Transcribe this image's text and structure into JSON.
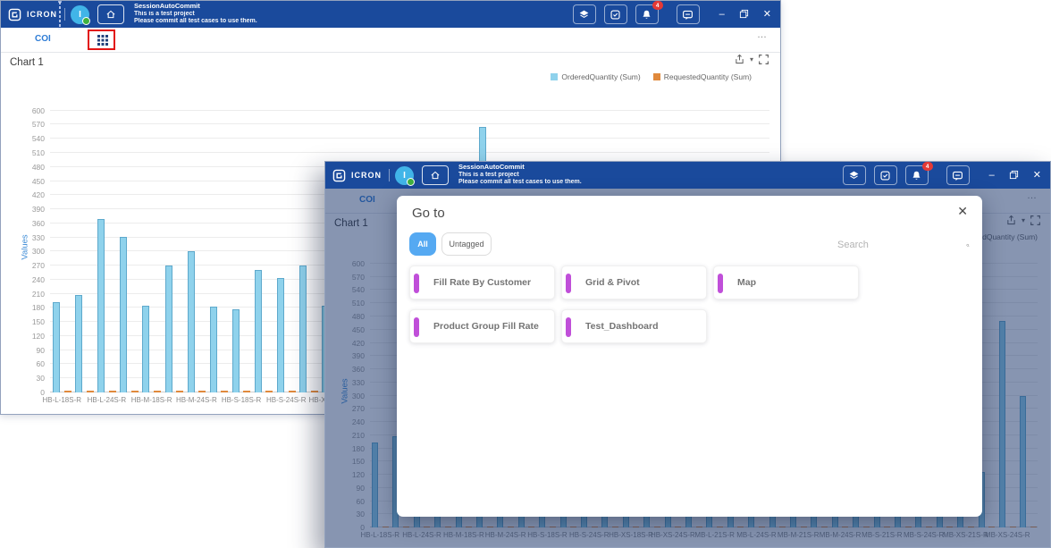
{
  "titlebar": {
    "app_name": "ICRON",
    "avatar_letter": "I",
    "project_name": "SessionAutoCommit",
    "project_line2": "This is a test project",
    "project_line3": "Please commit all test cases to use them.",
    "notification_count": "4",
    "minimize_glyph": "–",
    "close_glyph": "✕"
  },
  "tabbar": {
    "tab_coi": "COI",
    "more_glyph": "…"
  },
  "chart_header": {
    "title": "Chart 1",
    "export_caret": "▾"
  },
  "chart_data": {
    "type": "bar",
    "title": "Chart 1",
    "ylabel": "Values",
    "ylim": [
      0,
      600
    ],
    "ytick_step": 30,
    "grid": true,
    "legend_position": "top-right",
    "n_categories": 32,
    "x_labels_shown_every": 2,
    "categories_shown": [
      "HB-L-18S-R",
      "HB-L-24S-R",
      "HB-M-18S-R",
      "HB-M-24S-R",
      "HB-S-18S-R",
      "HB-S-24S-R",
      "HB-XS-18S-R",
      "HB-XS-24S-R",
      "MB-L-21S-R",
      "MB-L-24S-R",
      "MB-M-21S-R",
      "MB-M-24S-R",
      "MB-S-21S-R",
      "MB-S-24S-R",
      "MB-XS-21S-R",
      "MB-XS-24S-R"
    ],
    "occluded_values_placeholder": 200,
    "series": [
      {
        "name": "OrderedQuantity (Sum)",
        "color": "#8fd2ec",
        "values": [
          193,
          207,
          370,
          331,
          185,
          270,
          300,
          183,
          177,
          260,
          244,
          270,
          185,
          200,
          200,
          200,
          200,
          200,
          200,
          565,
          200,
          200,
          200,
          200,
          200,
          200,
          200,
          200,
          200,
          126,
          470,
          299
        ]
      },
      {
        "name": "RequestedQuantity (Sum)",
        "color": "#e0893c",
        "values_constant": 3
      }
    ]
  },
  "modal": {
    "title": "Go to",
    "close_glyph": "✕",
    "filters": [
      "All",
      "Untagged"
    ],
    "active_filter": "All",
    "search_placeholder": "Search",
    "cards": [
      "Fill Rate By Customer",
      "Grid & Pivot",
      "Map",
      "Product Group Fill Rate",
      "Test_Dashboard"
    ]
  },
  "colors": {
    "titlebar_blue": "#1a4a9c",
    "bar_blue": "#8fd2ec",
    "bar_orange": "#e0893c",
    "accent_purple": "#c04fd9",
    "chip_blue": "#55a9f2",
    "values_axis_blue": "#3a8ad6",
    "badge_red": "#e53935",
    "annotation_red": "#e21414"
  }
}
